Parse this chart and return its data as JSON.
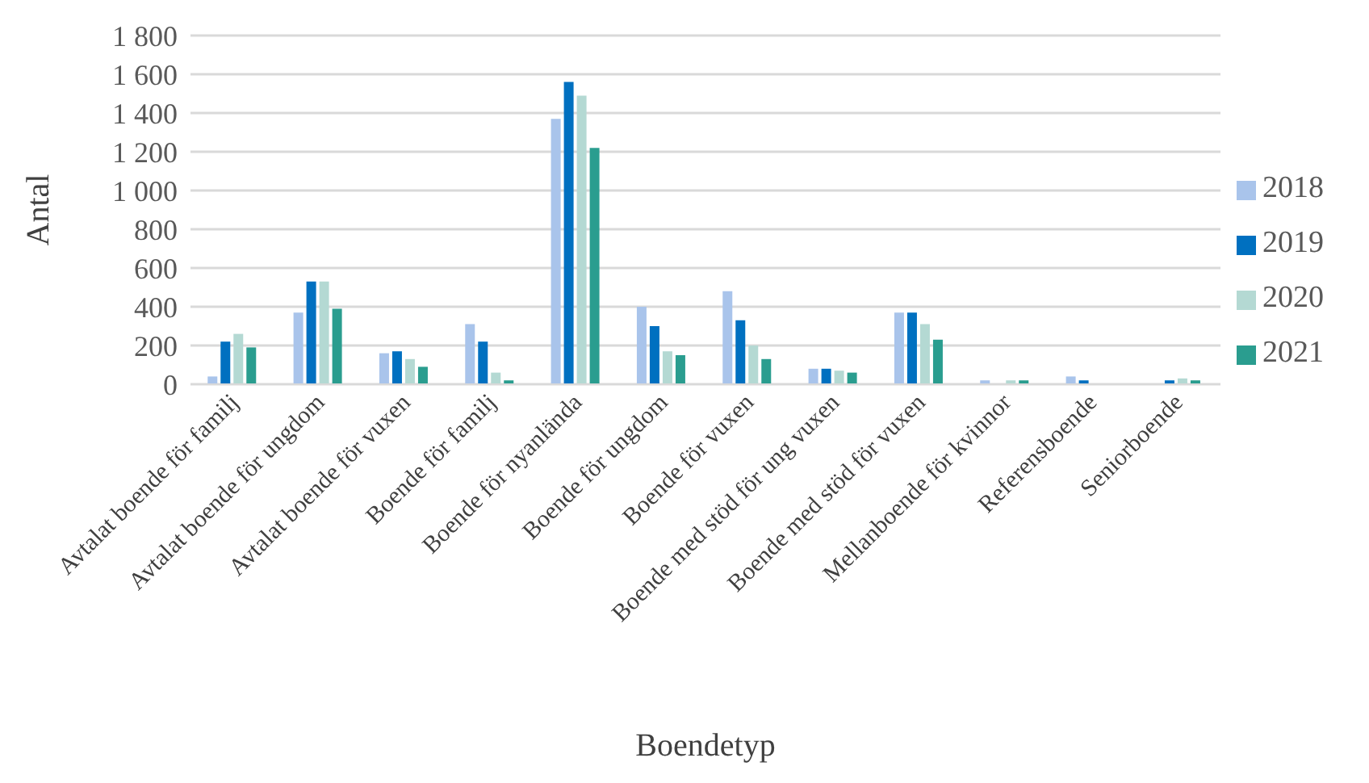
{
  "chart_data": {
    "type": "bar",
    "xlabel": "Boendetyp",
    "ylabel": "Antal",
    "categories": [
      "Avtalat boende för familj",
      "Avtalat boende för ungdom",
      "Avtalat boende för vuxen",
      "Boende för familj",
      "Boende för nyanlända",
      "Boende för ungdom",
      "Boende för vuxen",
      "Boende med stöd för ung vuxen",
      "Boende med stöd för vuxen",
      "Mellanboende för kvinnor",
      "Referensboende",
      "Seniorboende"
    ],
    "series": [
      {
        "name": "2018",
        "color": "#a9c4eb",
        "values": [
          40,
          370,
          160,
          310,
          1370,
          400,
          480,
          80,
          370,
          20,
          40,
          null
        ]
      },
      {
        "name": "2019",
        "color": "#0070c0",
        "values": [
          220,
          530,
          170,
          220,
          1560,
          300,
          330,
          80,
          370,
          null,
          20,
          20
        ]
      },
      {
        "name": "2020",
        "color": "#b4d9d3",
        "values": [
          260,
          530,
          130,
          60,
          1490,
          170,
          200,
          70,
          310,
          20,
          null,
          30
        ]
      },
      {
        "name": "2021",
        "color": "#2a9d8f",
        "values": [
          190,
          390,
          90,
          20,
          1220,
          150,
          130,
          60,
          230,
          20,
          null,
          20
        ]
      }
    ],
    "ylim": [
      0,
      1800
    ],
    "yticks": [
      0,
      200,
      400,
      600,
      800,
      {
        "value": 1000,
        "label": "1 000"
      },
      {
        "value": 1200,
        "label": "1 200"
      },
      {
        "value": 1400,
        "label": "1 400"
      },
      {
        "value": 1600,
        "label": "1 600"
      },
      {
        "value": 1800,
        "label": "1 800"
      }
    ],
    "grid": "y",
    "legend": "right"
  }
}
